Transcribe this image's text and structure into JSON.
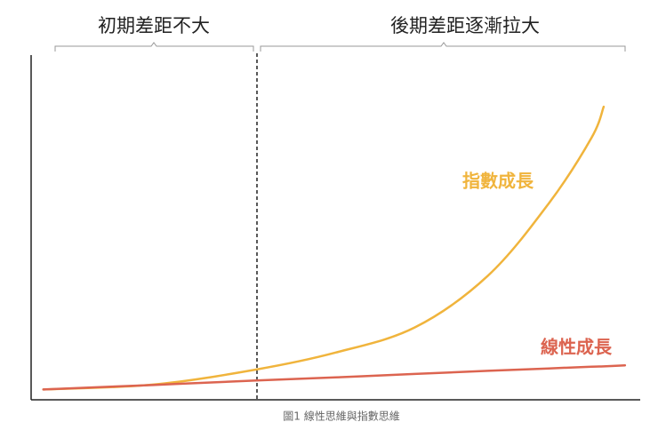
{
  "chart_data": {
    "type": "line",
    "annotations": [
      "初期差距不大",
      "後期差距逐漸拉大"
    ],
    "caption": "圖1 線性思維與指數思維",
    "x": [
      2,
      20,
      37,
      50,
      63,
      75,
      85,
      92,
      94,
      97.5
    ],
    "xlim": [
      0,
      100
    ],
    "ylim": [
      0,
      100
    ],
    "series": [
      {
        "name": "指數成長",
        "color": "#f0b43c",
        "values": [
          3,
          4.4,
          8.8,
          13.7,
          21,
          36,
          57,
          76,
          85,
          null
        ]
      },
      {
        "name": "線性成長",
        "color": "#dc6450",
        "values": [
          3,
          4.3,
          5.6,
          6.5,
          7.5,
          8.4,
          9.1,
          9.6,
          9.7,
          10
        ]
      }
    ]
  }
}
